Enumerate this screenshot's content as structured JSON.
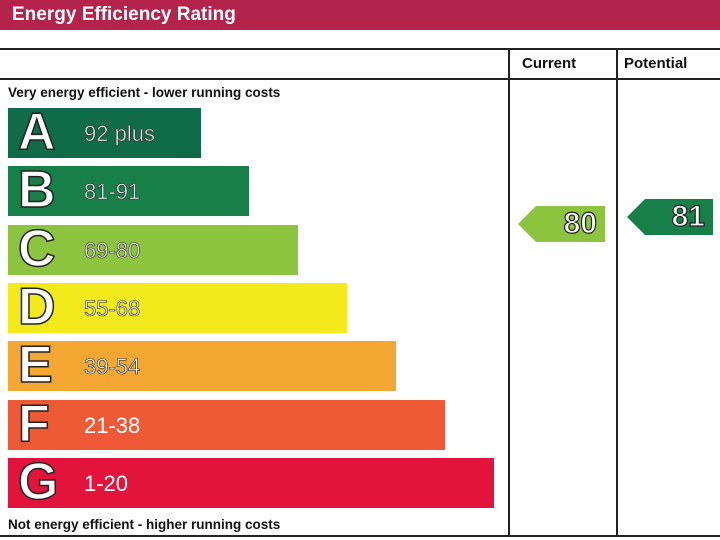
{
  "header": {
    "title": "Energy Efficiency Rating"
  },
  "columns": {
    "current": "Current",
    "potential": "Potential"
  },
  "notes": {
    "top": "Very energy efficient - lower running costs",
    "bottom": "Not energy efficient - higher running costs"
  },
  "chart_data": {
    "type": "bar",
    "title": "Energy Efficiency Rating",
    "bands": [
      {
        "letter": "A",
        "range": "92 plus",
        "color": "#0f6b4a"
      },
      {
        "letter": "B",
        "range": "81-91",
        "color": "#178048"
      },
      {
        "letter": "C",
        "range": "69-80",
        "color": "#8cc43f"
      },
      {
        "letter": "D",
        "range": "55-68",
        "color": "#f2ea1a"
      },
      {
        "letter": "E",
        "range": "39-54",
        "color": "#f5a733"
      },
      {
        "letter": "F",
        "range": "21-38",
        "color": "#ee5a35"
      },
      {
        "letter": "G",
        "range": "1-20",
        "color": "#e2143c"
      }
    ],
    "current": {
      "value": 80,
      "band": "C",
      "color": "#8cc43f"
    },
    "potential": {
      "value": 81,
      "band": "B",
      "color": "#178048"
    }
  }
}
